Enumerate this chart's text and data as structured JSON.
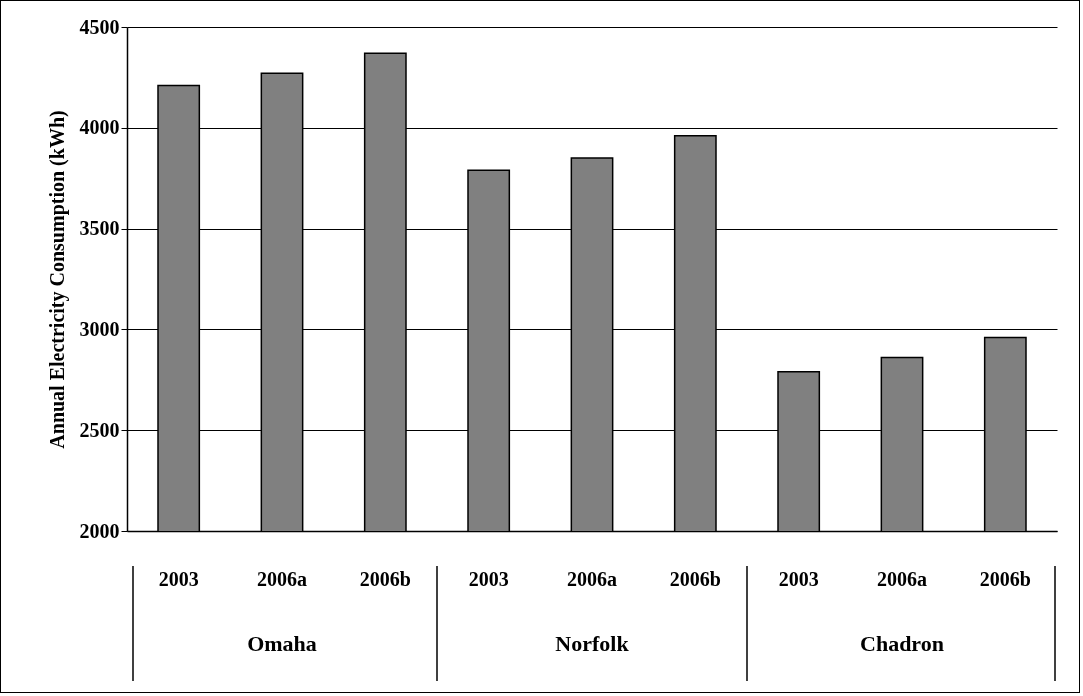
{
  "chart_data": {
    "type": "bar",
    "ylabel": "Annual Electricity Consumption (kWh)",
    "categories": [
      "2003",
      "2006a",
      "2006b",
      "2003",
      "2006a",
      "2006b",
      "2003",
      "2006a",
      "2006b"
    ],
    "values": [
      4210,
      4270,
      4370,
      3790,
      3850,
      3960,
      2790,
      2860,
      2960
    ],
    "color": "#808080",
    "ylim": [
      2000,
      4500
    ],
    "yticks": [
      2000,
      2500,
      3000,
      3500,
      4000,
      4500
    ],
    "grid": "y",
    "annotations": [
      "Omaha",
      "Norfolk",
      "Chadron"
    ]
  }
}
